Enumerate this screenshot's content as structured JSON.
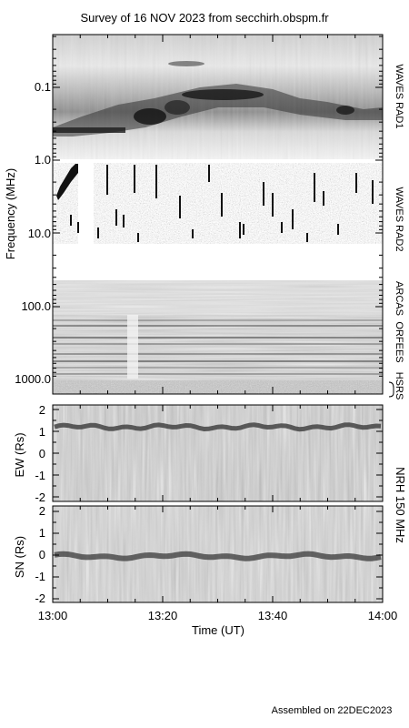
{
  "title": "Survey of 16 NOV 2023 from secchirh.obspm.fr",
  "footer": "Assembled on 22DEC2023",
  "spectrum": {
    "ylabel": "Frequency (MHz)",
    "ticks": [
      "0.1",
      "1.0",
      "10.0",
      "100.0",
      "1000.0"
    ],
    "instruments": [
      "WAVES RAD1",
      "WAVES RAD2",
      "ARCAS",
      "ORFEES",
      "HSRS"
    ]
  },
  "nrh": {
    "label": "NRH 150 MHz",
    "ew": {
      "ylabel": "EW (Rs)",
      "ticks": [
        "2",
        "1",
        "0",
        "-1",
        "-2"
      ]
    },
    "sn": {
      "ylabel": "SN (Rs)",
      "ticks": [
        "2",
        "1",
        "0",
        "-1",
        "-2"
      ]
    }
  },
  "time_axis": {
    "label": "Time (UT)",
    "ticks": [
      "13:00",
      "13:20",
      "13:40",
      "14:00"
    ]
  },
  "chart_data": [
    {
      "type": "heatmap",
      "title": "Survey of 16 NOV 2023 from secchirh.obspm.fr",
      "xlabel": "Time (UT)",
      "ylabel": "Frequency (MHz)",
      "xlim": [
        "13:00",
        "14:00"
      ],
      "y_scale": "log",
      "y_tick_labels": [
        "0.1",
        "1.0",
        "10.0",
        "100.0",
        "1000.0"
      ],
      "bands": [
        {
          "name": "WAVES RAD1",
          "ylim_mhz": [
            0.02,
            1.0
          ]
        },
        {
          "name": "WAVES RAD2",
          "ylim_mhz": [
            1.0,
            14
          ]
        },
        {
          "name": "ARCAS",
          "ylim_mhz": [
            45,
            80
          ]
        },
        {
          "name": "ORFEES",
          "ylim_mhz": [
            144,
            1000
          ]
        },
        {
          "name": "HSRS",
          "ylim_mhz": [
            1000,
            1300
          ]
        }
      ]
    },
    {
      "type": "heatmap",
      "ylabel": "EW (Rs)",
      "ylim": [
        -2.2,
        2.2
      ],
      "y_ticks": [
        2,
        1,
        0,
        -1,
        -2
      ],
      "xlim": [
        "13:00",
        "14:00"
      ],
      "dominant_source_position_rs": 1.2
    },
    {
      "type": "heatmap",
      "ylabel": "SN (Rs)",
      "ylim": [
        -2.2,
        2.2
      ],
      "y_ticks": [
        2,
        1,
        0,
        -1,
        -2
      ],
      "xlim": [
        "13:00",
        "14:00"
      ],
      "xlabel": "Time (UT)",
      "x_tick_labels": [
        "13:00",
        "13:20",
        "13:40",
        "14:00"
      ],
      "dominant_source_position_rs": -0.05
    }
  ]
}
